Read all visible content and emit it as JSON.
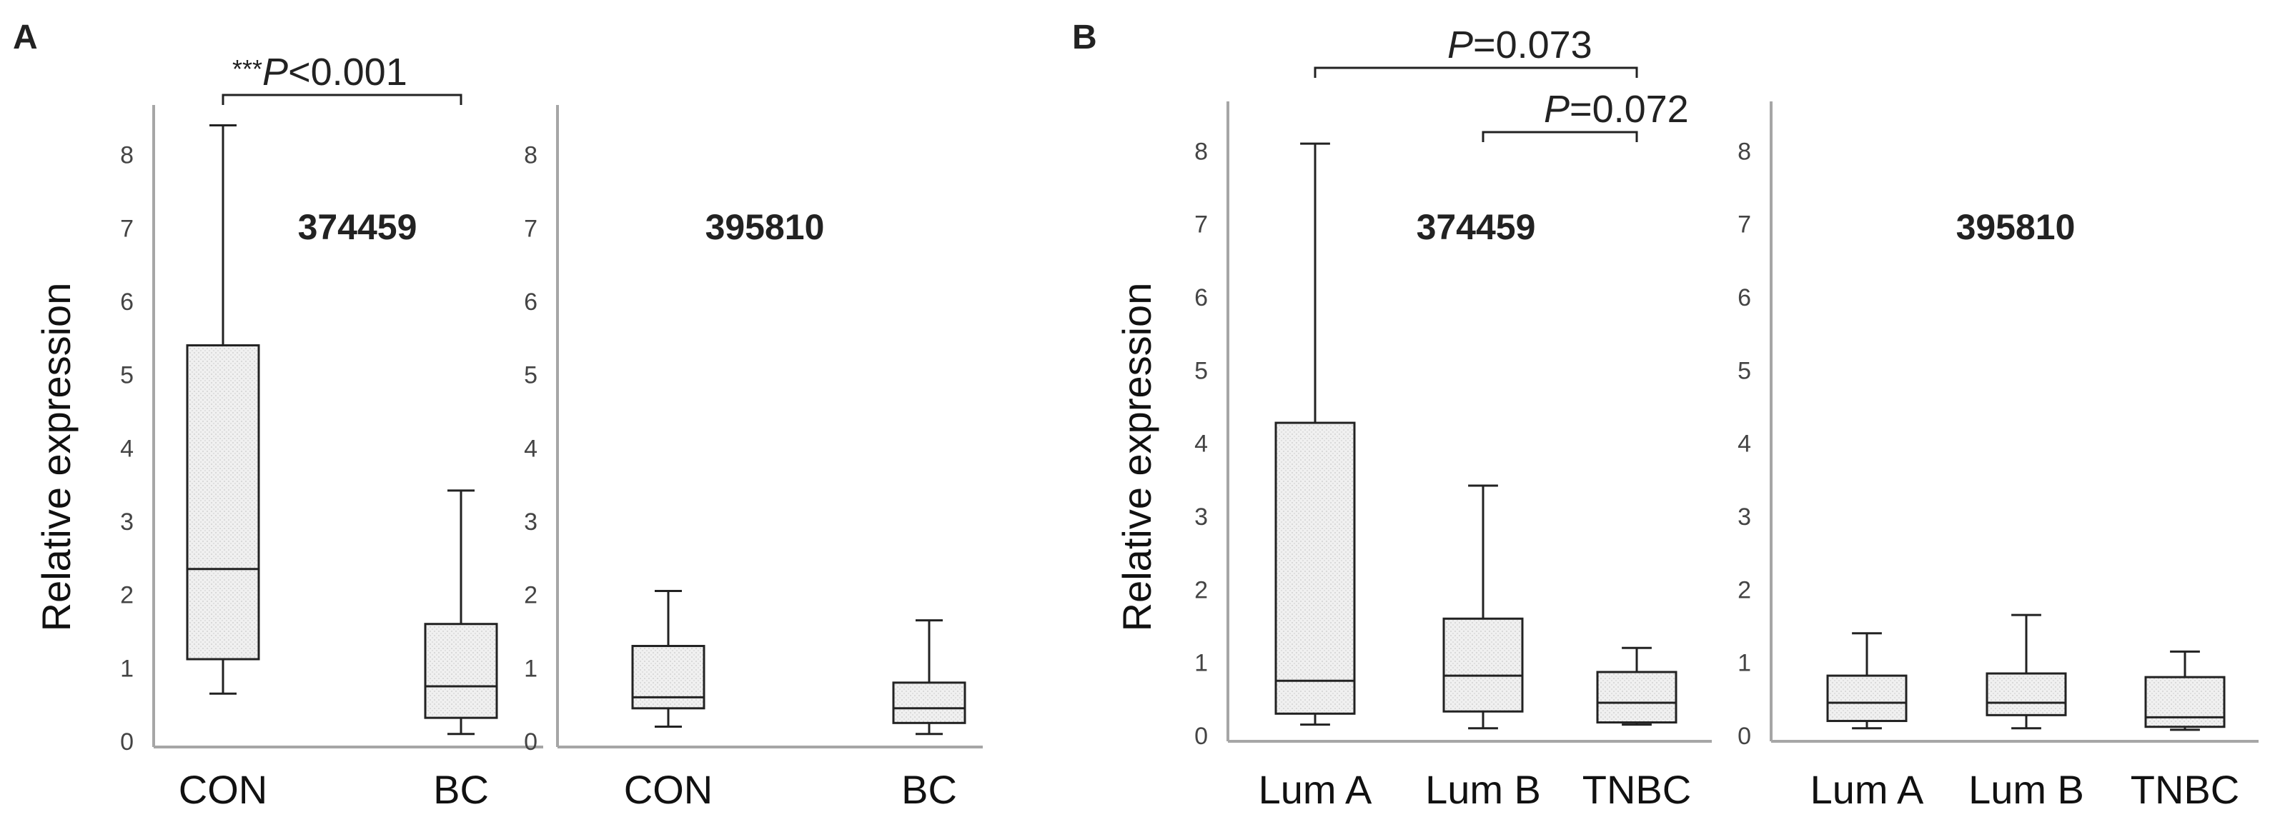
{
  "panels": [
    {
      "letter": "A",
      "y_title": "Relative expression"
    },
    {
      "letter": "B",
      "y_title": "Relative expression"
    }
  ],
  "colors": {
    "box_fill": "#f0f0f0",
    "stroke": "#222222",
    "axis": "#a6a6a6",
    "text": "#222222"
  },
  "chart_data": [
    {
      "type": "boxplot",
      "panel": "A",
      "title": "374459",
      "ylabel": "Relative expression",
      "ylim": [
        0,
        8.6
      ],
      "yticks": [
        0,
        1,
        2,
        3,
        4,
        5,
        6,
        7,
        8
      ],
      "categories": [
        "CON",
        "BC"
      ],
      "boxes": [
        {
          "category": "CON",
          "min": 0.65,
          "q1": 1.12,
          "median": 2.35,
          "q3": 5.4,
          "max": 8.4
        },
        {
          "category": "BC",
          "min": 0.1,
          "q1": 0.32,
          "median": 0.75,
          "q3": 1.6,
          "max": 3.42
        }
      ],
      "annotations": [
        {
          "from": "CON",
          "to": "BC",
          "stars": "***",
          "p_label": "P",
          "p_text": "<0.001"
        }
      ]
    },
    {
      "type": "boxplot",
      "panel": "A",
      "title": "395810",
      "ylim": [
        0,
        8.6
      ],
      "yticks": [
        0,
        1,
        2,
        3,
        4,
        5,
        6,
        7,
        8
      ],
      "categories": [
        "CON",
        "BC"
      ],
      "boxes": [
        {
          "category": "CON",
          "min": 0.2,
          "q1": 0.45,
          "median": 0.6,
          "q3": 1.3,
          "max": 2.05
        },
        {
          "category": "BC",
          "min": 0.1,
          "q1": 0.25,
          "median": 0.45,
          "q3": 0.8,
          "max": 1.65
        }
      ],
      "annotations": []
    },
    {
      "type": "boxplot",
      "panel": "B",
      "title": "374459",
      "ylabel": "Relative expression",
      "ylim": [
        0,
        8.6
      ],
      "yticks": [
        0,
        1,
        2,
        3,
        4,
        5,
        6,
        7,
        8
      ],
      "categories": [
        "Lum A",
        "Lum B",
        "TNBC"
      ],
      "boxes": [
        {
          "category": "Lum A",
          "min": 0.15,
          "q1": 0.3,
          "median": 0.75,
          "q3": 4.28,
          "max": 8.1
        },
        {
          "category": "Lum B",
          "min": 0.1,
          "q1": 0.33,
          "median": 0.82,
          "q3": 1.6,
          "max": 3.42
        },
        {
          "category": "TNBC",
          "min": 0.15,
          "q1": 0.18,
          "median": 0.45,
          "q3": 0.87,
          "max": 1.2
        }
      ],
      "annotations": [
        {
          "from": "Lum A",
          "to": "TNBC",
          "stars": "",
          "p_label": "P",
          "p_text": "=0.073"
        },
        {
          "from": "Lum B",
          "to": "TNBC",
          "stars": "",
          "p_label": "P",
          "p_text": "=0.072"
        }
      ]
    },
    {
      "type": "boxplot",
      "panel": "B",
      "title": "395810",
      "ylim": [
        0,
        8.6
      ],
      "yticks": [
        0,
        1,
        2,
        3,
        4,
        5,
        6,
        7,
        8
      ],
      "categories": [
        "Lum A",
        "Lum B",
        "TNBC"
      ],
      "boxes": [
        {
          "category": "Lum A",
          "min": 0.1,
          "q1": 0.2,
          "median": 0.45,
          "q3": 0.82,
          "max": 1.4
        },
        {
          "category": "Lum B",
          "min": 0.1,
          "q1": 0.28,
          "median": 0.45,
          "q3": 0.85,
          "max": 1.65
        },
        {
          "category": "TNBC",
          "min": 0.08,
          "q1": 0.12,
          "median": 0.25,
          "q3": 0.8,
          "max": 1.15
        }
      ],
      "annotations": []
    }
  ]
}
